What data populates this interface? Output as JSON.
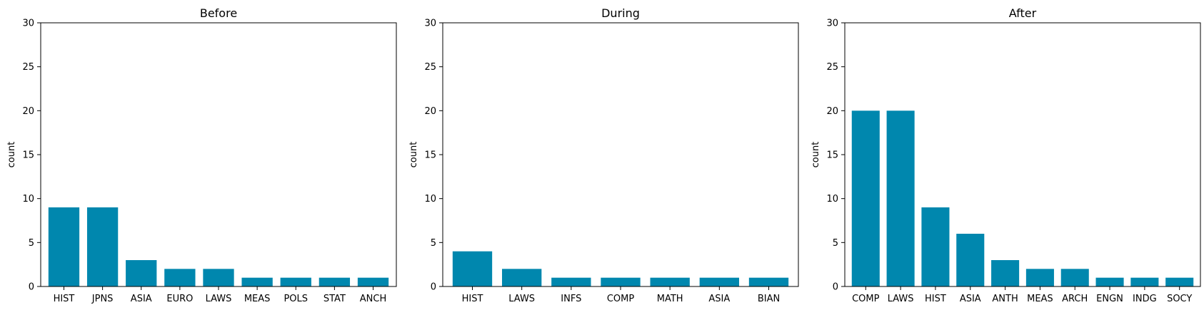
{
  "chart_data": [
    {
      "type": "bar",
      "title": "Before",
      "xlabel": "",
      "ylabel": "count",
      "ylim": [
        0,
        30
      ],
      "yticks": [
        0,
        5,
        10,
        15,
        20,
        25,
        30
      ],
      "categories": [
        "HIST",
        "JPNS",
        "ASIA",
        "EURO",
        "LAWS",
        "MEAS",
        "POLS",
        "STAT",
        "ANCH"
      ],
      "values": [
        9,
        9,
        3,
        2,
        2,
        1,
        1,
        1,
        1
      ],
      "color": "#0087ae",
      "grid": false
    },
    {
      "type": "bar",
      "title": "During",
      "xlabel": "",
      "ylabel": "count",
      "ylim": [
        0,
        30
      ],
      "yticks": [
        0,
        5,
        10,
        15,
        20,
        25,
        30
      ],
      "categories": [
        "HIST",
        "LAWS",
        "INFS",
        "COMP",
        "MATH",
        "ASIA",
        "BIAN"
      ],
      "values": [
        4,
        2,
        1,
        1,
        1,
        1,
        1
      ],
      "color": "#0087ae",
      "grid": false
    },
    {
      "type": "bar",
      "title": "After",
      "xlabel": "",
      "ylabel": "count",
      "ylim": [
        0,
        30
      ],
      "yticks": [
        0,
        5,
        10,
        15,
        20,
        25,
        30
      ],
      "categories": [
        "COMP",
        "LAWS",
        "HIST",
        "ASIA",
        "ANTH",
        "MEAS",
        "ARCH",
        "ENGN",
        "INDG",
        "SOCY"
      ],
      "values": [
        20,
        20,
        9,
        6,
        3,
        2,
        2,
        1,
        1,
        1
      ],
      "color": "#0087ae",
      "grid": false
    }
  ]
}
